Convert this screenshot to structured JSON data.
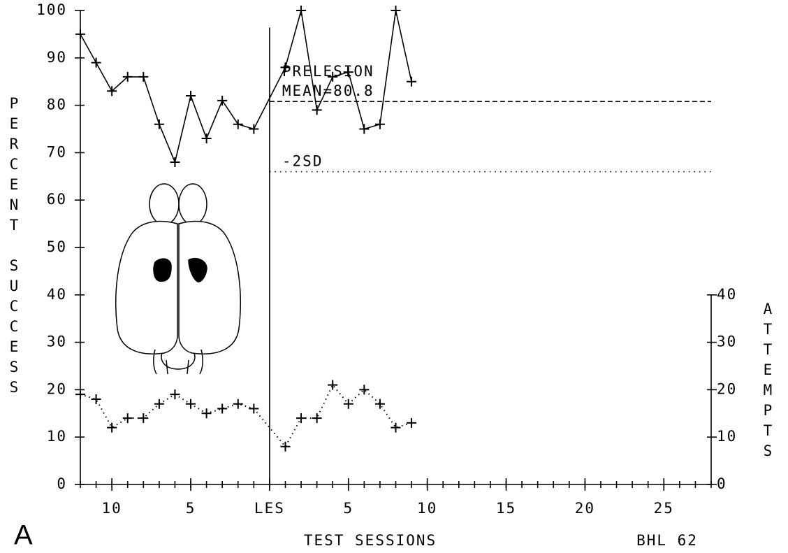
{
  "chart_data": {
    "type": "line",
    "xlabel": "TEST SESSIONS",
    "ylabel": "PERCENT SUCCESS",
    "y2label": "ATTEMPTS",
    "panel_label": "A",
    "code": "BHL 62",
    "xlim": [
      -12,
      28
    ],
    "xticks": [
      {
        "value": -10,
        "label": "10"
      },
      {
        "value": -5,
        "label": "5"
      },
      {
        "value": 0,
        "label": "LES"
      },
      5,
      10,
      15,
      20,
      25
    ],
    "ylim": [
      0,
      100
    ],
    "yticks": [
      0,
      10,
      20,
      30,
      40,
      50,
      60,
      70,
      80,
      90,
      100
    ],
    "y2lim": [
      0,
      40
    ],
    "y2ticks": [
      0,
      10,
      20,
      30,
      40
    ],
    "lesion_line": {
      "x": 0,
      "top": 96.4
    },
    "series": [
      {
        "x": [
          -12,
          -11,
          -10,
          -9,
          -8,
          -7,
          -6,
          -5,
          -4,
          -3,
          -2,
          -1,
          1,
          2,
          3,
          4,
          5,
          6,
          7,
          8,
          9
        ],
        "values": [
          95,
          89,
          83,
          86,
          86,
          76,
          68,
          82,
          73,
          81,
          76,
          75,
          88,
          100,
          79,
          86,
          87,
          75,
          76,
          100,
          85
        ],
        "style": "solid",
        "color": "#000000"
      },
      {
        "x": [
          -12,
          -11,
          -10,
          -9,
          -8,
          -7,
          -6,
          -5,
          -4,
          -3,
          -2,
          -1,
          1,
          2,
          3,
          4,
          5,
          6,
          7,
          8,
          9
        ],
        "values": [
          19,
          18,
          12,
          14,
          14,
          17,
          19,
          17,
          15,
          16,
          17,
          16,
          8,
          14,
          14,
          21,
          17,
          20,
          17,
          12,
          13
        ],
        "axis": "y2",
        "style": "dotted",
        "color": "#000000"
      }
    ],
    "reference_lines": [
      {
        "label_lines": [
          "PRELESION",
          "MEAN=80.8"
        ],
        "value": 80.8,
        "x": [
          0,
          28
        ],
        "style": "dashed"
      },
      {
        "label_lines": [
          "-2SD"
        ],
        "value": 66,
        "x": [
          0,
          28
        ],
        "style": "dotted"
      }
    ]
  }
}
